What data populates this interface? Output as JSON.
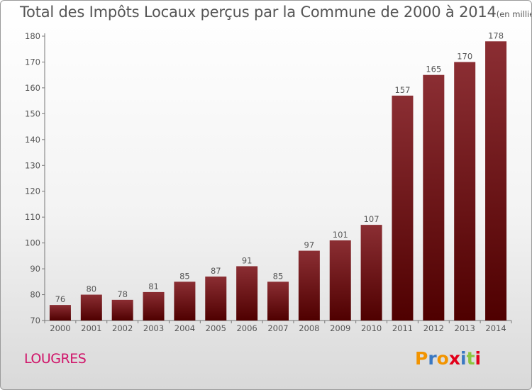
{
  "title": "Total des Impôts Locaux perçus par la Commune de 2000 à 2014",
  "unit_note": "(en milliers d'€)",
  "commune": "LOUGRES",
  "logo": {
    "text": "Proxiti",
    "letters": [
      "P",
      "r",
      "o",
      "x",
      "i",
      "t",
      "i"
    ],
    "colors": [
      "#f29400",
      "#3a78c2",
      "#f29400",
      "#e2001a",
      "#3a78c2",
      "#8cc63f",
      "#e2001a"
    ]
  },
  "colors": {
    "bar_dark": "#4f0000",
    "bar_light": "#8b2e33",
    "text": "#555555",
    "commune": "#d0156a"
  },
  "chart_data": {
    "type": "bar",
    "categories": [
      "2000",
      "2001",
      "2002",
      "2003",
      "2004",
      "2005",
      "2006",
      "2007",
      "2008",
      "2009",
      "2010",
      "2011",
      "2012",
      "2013",
      "2014"
    ],
    "values": [
      76,
      80,
      78,
      81,
      85,
      87,
      91,
      85,
      97,
      101,
      107,
      157,
      165,
      170,
      178
    ],
    "value_labels": [
      "76",
      "80",
      "78",
      "81",
      "85",
      "87",
      "91",
      "85",
      "97",
      "101",
      "107",
      "157",
      "165",
      "170",
      "178"
    ],
    "ylim": [
      70,
      180
    ],
    "yticks": [
      70,
      80,
      90,
      100,
      110,
      120,
      130,
      140,
      150,
      160,
      170,
      180
    ],
    "grid": false,
    "legend": "none"
  }
}
